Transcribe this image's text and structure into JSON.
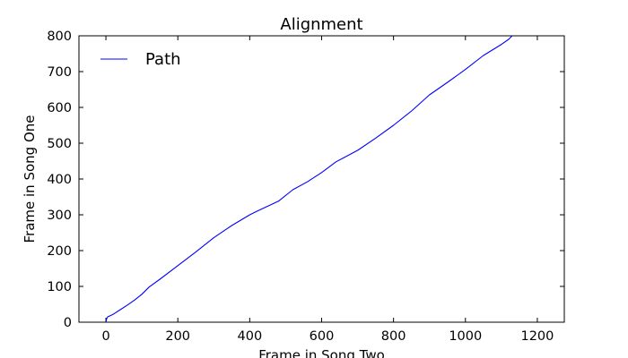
{
  "chart_data": {
    "type": "line",
    "title": "Alignment",
    "xlabel": "Frame in Song Two",
    "ylabel": "Frame in Song One",
    "xlim": [
      -75,
      1275
    ],
    "ylim": [
      0,
      800
    ],
    "xticks": [
      0,
      200,
      400,
      600,
      800,
      1000,
      1200
    ],
    "yticks": [
      0,
      100,
      200,
      300,
      400,
      500,
      600,
      700,
      800
    ],
    "grid": false,
    "legend": {
      "position": "top-left"
    },
    "series": [
      {
        "name": "Path",
        "color": "#0000ff",
        "x": [
          0,
          2,
          5,
          20,
          40,
          60,
          80,
          100,
          120,
          150,
          200,
          250,
          300,
          350,
          400,
          420,
          480,
          520,
          560,
          600,
          640,
          700,
          750,
          800,
          850,
          900,
          950,
          1000,
          1050,
          1100,
          1120,
          1130
        ],
        "y": [
          0,
          10,
          15,
          22,
          35,
          48,
          62,
          78,
          98,
          120,
          158,
          196,
          236,
          270,
          300,
          310,
          338,
          370,
          392,
          418,
          448,
          480,
          514,
          550,
          590,
          635,
          670,
          706,
          745,
          776,
          790,
          800
        ]
      }
    ]
  }
}
